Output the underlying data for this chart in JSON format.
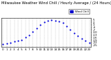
{
  "title": "Milwaukee Weather Wind Chill / Hourly Average / (24 Hours)",
  "x_values": [
    0,
    1,
    2,
    3,
    4,
    5,
    6,
    7,
    8,
    9,
    10,
    11,
    12,
    13,
    14,
    15,
    16,
    17,
    18,
    19,
    20,
    21,
    22,
    23
  ],
  "y_values": [
    -24,
    -23,
    -22,
    -21,
    -20,
    -19,
    -16,
    -13,
    -9,
    -5,
    -1,
    2,
    4,
    5,
    4,
    3,
    1,
    -3,
    -7,
    -11,
    -14,
    -17,
    -20,
    -22
  ],
  "dot_color": "#0000dd",
  "dot_size": 2.5,
  "background_color": "#ffffff",
  "grid_color": "#999999",
  "ylim": [
    -27,
    7
  ],
  "xlim": [
    -0.5,
    23.5
  ],
  "ytick_values": [
    -25,
    -22,
    -19,
    -16,
    -13,
    -10,
    -7,
    -4,
    -1,
    2,
    5
  ],
  "xticks": [
    0,
    1,
    2,
    3,
    4,
    5,
    6,
    7,
    8,
    9,
    10,
    11,
    12,
    13,
    14,
    15,
    16,
    17,
    18,
    19,
    20,
    21,
    22,
    23
  ],
  "legend_label": "Wind Chill",
  "legend_color": "#0000cc",
  "title_fontsize": 3.8,
  "tick_fontsize": 3.0,
  "axis_label_color": "#000000"
}
